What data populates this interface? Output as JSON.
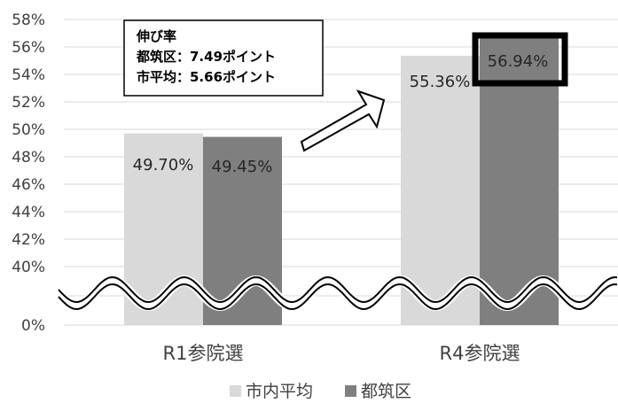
{
  "chart_data": {
    "type": "bar",
    "categories": [
      "R1参院選",
      "R4参院選"
    ],
    "series": [
      {
        "name": "市内平均",
        "values": [
          49.7,
          55.36
        ],
        "labels": [
          "49.70%",
          "55.36%"
        ],
        "color": "#D9D9D9"
      },
      {
        "name": "都筑区",
        "values": [
          49.45,
          56.94
        ],
        "labels": [
          "49.45%",
          "56.94%"
        ],
        "color": "#7F7F7F"
      }
    ],
    "y_ticks": [
      "0%",
      "40%",
      "42%",
      "44%",
      "46%",
      "48%",
      "50%",
      "52%",
      "54%",
      "56%",
      "58%"
    ],
    "ylim": [
      40,
      58
    ],
    "axis_break": true,
    "grid": true,
    "legend_position": "bottom",
    "annotation": {
      "lines": [
        "伸び率",
        "都筑区：7.49ポイント",
        "市平均：5.66ポイント"
      ]
    },
    "highlight": "56.94%"
  }
}
